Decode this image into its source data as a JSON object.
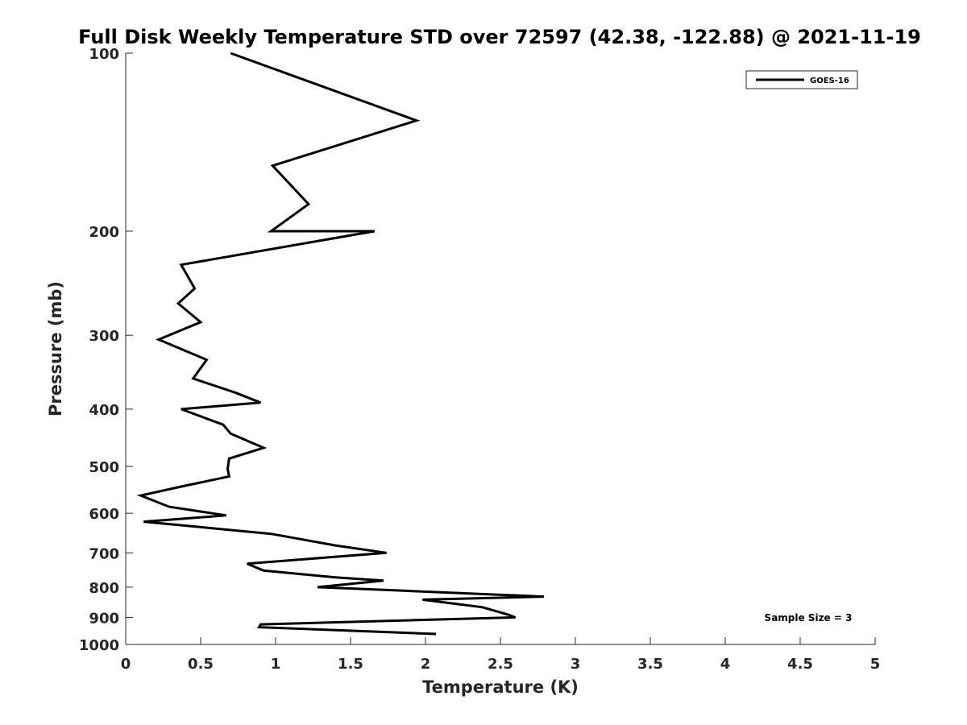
{
  "chart_data": {
    "type": "line",
    "title": "Full Disk Weekly Temperature STD over 72597 (42.38, -122.88) @ 2021-11-19",
    "xlabel": "Temperature (K)",
    "ylabel": "Pressure (mb)",
    "xlim": [
      0,
      5
    ],
    "ylim": [
      100,
      1000
    ],
    "y_scale": "log",
    "y_reversed": true,
    "x_ticks": [
      "0",
      "0.5",
      "1",
      "1.5",
      "2",
      "2.5",
      "3",
      "3.5",
      "4",
      "4.5",
      "5"
    ],
    "y_ticks": [
      "100",
      "200",
      "300",
      "400",
      "500",
      "600",
      "700",
      "800",
      "900",
      "1000"
    ],
    "grid": false,
    "legend_position": "top-right",
    "annotation": "Sample Size = 3",
    "series": [
      {
        "name": "GOES-16",
        "color": "#000000",
        "x": [
          0.7,
          1.94,
          0.98,
          1.22,
          0.97,
          1.66,
          0.37,
          0.46,
          0.35,
          0.5,
          0.22,
          0.54,
          0.45,
          0.73,
          0.9,
          0.37,
          0.65,
          0.7,
          0.92,
          0.69,
          0.68,
          0.69,
          0.38,
          0.1,
          0.29,
          0.67,
          0.12,
          0.97,
          1.4,
          1.74,
          0.81,
          0.92,
          1.4,
          1.72,
          1.28,
          1.79,
          2.79,
          1.98,
          2.38,
          2.55,
          2.6,
          0.9,
          0.89,
          2.07
        ],
        "y": [
          100,
          130,
          155,
          180,
          200,
          200,
          228,
          250,
          265,
          285,
          305,
          330,
          355,
          375,
          390,
          400,
          425,
          440,
          465,
          485,
          505,
          520,
          540,
          560,
          585,
          605,
          620,
          650,
          680,
          700,
          730,
          750,
          770,
          780,
          800,
          810,
          830,
          840,
          865,
          890,
          900,
          925,
          935,
          960
        ]
      }
    ]
  }
}
